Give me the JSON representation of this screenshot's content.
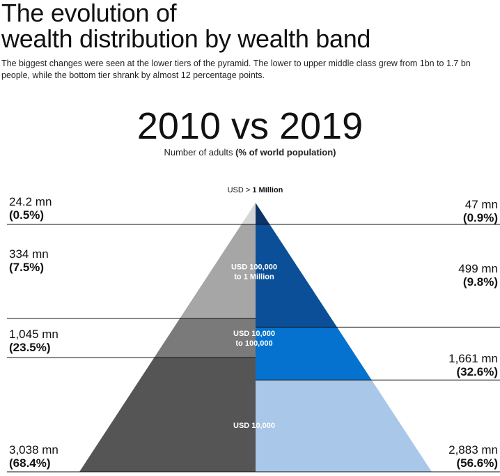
{
  "title_line1": "The evolution of",
  "title_line2": "wealth distribution by wealth band",
  "subtitle": "The biggest changes were seen at the lower tiers of the pyramid. The lower to upper middle class grew from 1bn to 1.7 bn people, while the bottom tier shrank by almost 12 percentage points.",
  "heading": "2010 vs 2019",
  "caption_plain": "Number of adults ",
  "caption_bold": "(% of world population)",
  "top_label_plain": "USD > ",
  "top_label_bold": "1 Million",
  "colors": {
    "left": [
      "#d6d6d6",
      "#a6a6a6",
      "#7a7a7a",
      "#555555"
    ],
    "right": [
      "#0d3466",
      "#0b4f98",
      "#0572cf",
      "#a9c7e9"
    ]
  },
  "chart_data": {
    "type": "pyramid",
    "title": "2010 vs 2019",
    "subtitle": "Number of adults (% of world population)",
    "series": [
      {
        "name": "2010",
        "bands_bottom_to_top": [
          {
            "band": "USD 10,000",
            "adults": "3,038 mn",
            "share": "(68.4%)",
            "adults_mn": 3038,
            "share_pct": 68.4
          },
          {
            "band": "USD 10,000 to 100,000",
            "adults": "1,045 mn",
            "share": "(23.5%)",
            "adults_mn": 1045,
            "share_pct": 23.5
          },
          {
            "band": "USD 100,000 to 1 Million",
            "adults": "334 mn",
            "share": "(7.5%)",
            "adults_mn": 334,
            "share_pct": 7.5
          },
          {
            "band": "USD > 1 Million",
            "adults": "24.2 mn",
            "share": "(0.5%)",
            "adults_mn": 24.2,
            "share_pct": 0.5
          }
        ]
      },
      {
        "name": "2019",
        "bands_bottom_to_top": [
          {
            "band": "USD 10,000",
            "adults": "2,883 mn",
            "share": "(56.6%)",
            "adults_mn": 2883,
            "share_pct": 56.6
          },
          {
            "band": "USD 10,000 to 100,000",
            "adults": "1,661 mn",
            "share": "(32.6%)",
            "adults_mn": 1661,
            "share_pct": 32.6
          },
          {
            "band": "USD 100,000 to 1 Million",
            "adults": "499 mn",
            "share": "(9.8%)",
            "adults_mn": 499,
            "share_pct": 9.8
          },
          {
            "band": "USD > 1 Million",
            "adults": "47 mn",
            "share": "(0.9%)",
            "adults_mn": 47,
            "share_pct": 0.9
          }
        ]
      }
    ],
    "tier_labels": [
      [
        "USD 10,000"
      ],
      [
        "USD 10,000",
        "to 100,000"
      ],
      [
        "USD 100,000",
        "to 1 Million"
      ]
    ]
  }
}
